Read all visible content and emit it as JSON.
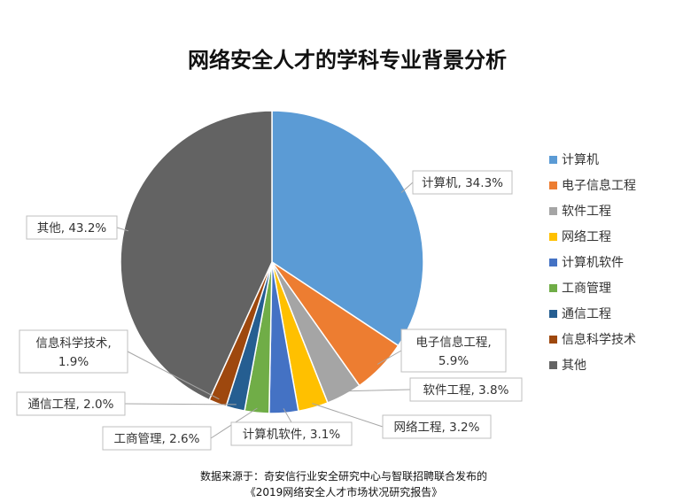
{
  "chart_data": {
    "type": "pie",
    "title": "网络安全人才的学科专业背景分析",
    "slices": [
      {
        "name": "计算机",
        "value": 34.3,
        "label": "计算机, 34.3%",
        "color": "#5B9BD5"
      },
      {
        "name": "电子信息工程",
        "value": 5.9,
        "label": "电子信息工程, 5.9%",
        "color": "#ED7D31"
      },
      {
        "name": "软件工程",
        "value": 3.8,
        "label": "软件工程, 3.8%",
        "color": "#A5A5A5"
      },
      {
        "name": "网络工程",
        "value": 3.2,
        "label": "网络工程, 3.2%",
        "color": "#FFC000"
      },
      {
        "name": "计算机软件",
        "value": 3.1,
        "label": "计算机软件, 3.1%",
        "color": "#4472C4"
      },
      {
        "name": "工商管理",
        "value": 2.6,
        "label": "工商管理, 2.6%",
        "color": "#70AD47"
      },
      {
        "name": "通信工程",
        "value": 2.0,
        "label": "通信工程, 2.0%",
        "color": "#255E91"
      },
      {
        "name": "信息科学技术",
        "value": 1.9,
        "label": "信息科学技术, 1.9%",
        "color": "#9E480E"
      },
      {
        "name": "其他",
        "value": 43.2,
        "label": "其他, 43.2%",
        "color": "#636363"
      }
    ],
    "legend_position": "right"
  },
  "source_lines": [
    "数据来源于：奇安信行业安全研究中心与智联招聘联合发布的",
    "《2019网络安全人才市场状况研究报告》"
  ]
}
